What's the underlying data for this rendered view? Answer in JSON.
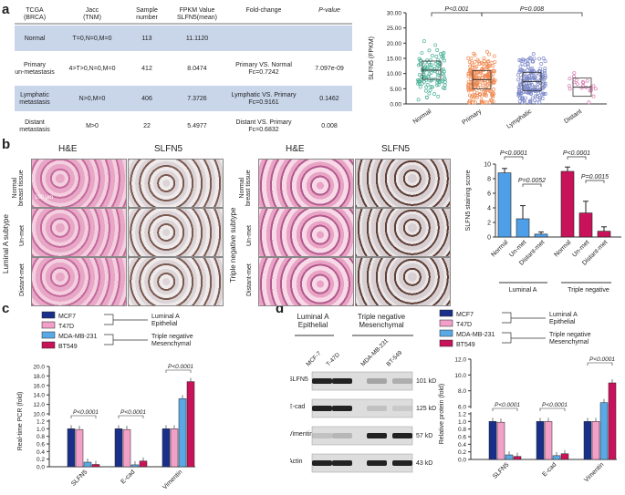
{
  "panels": {
    "a": "a",
    "b": "b",
    "c": "c",
    "d": "d"
  },
  "table_a": {
    "headers": [
      "TCGA\n(BRCA)",
      "Jacc\n(TNM)",
      "Sample\nnumber",
      "FPKM Value\nSLFN5(mean)",
      "Fold-change",
      "P-value"
    ],
    "rows": [
      {
        "group": "Normal",
        "tnm": "T=0,N=0,M=0",
        "n": "113",
        "fpkm": "11.1120",
        "fold": "",
        "p": ""
      },
      {
        "group": "Primary\nun-metastasis",
        "tnm": "4>T>0,N=0,M=0",
        "n": "412",
        "fpkm": "8.0474",
        "fold": "Primary VS. Normal\nFc=0.7242",
        "p": "7.097e-09"
      },
      {
        "group": "Lymphatic\nmetastasis",
        "tnm": "N>0,M=0",
        "n": "406",
        "fpkm": "7.3726",
        "fold": "Lymphatic VS. Primary\nFc=0.9161",
        "p": "0.1462"
      },
      {
        "group": "Distant\nmetastasis",
        "tnm": "M>0",
        "n": "22",
        "fpkm": "5.4977",
        "fold": "Distant VS. Primary\nFc=0.6832",
        "p": "0.008"
      }
    ]
  },
  "chart_data": [
    {
      "id": "a-dot",
      "type": "scatter",
      "ylabel": "SLFN5 (FPKM)",
      "ylim": [
        0,
        30
      ],
      "yticks": [
        "0.00",
        "5.00",
        "10.00",
        "15.00",
        "20.00",
        "25.00",
        "30.00"
      ],
      "categories": [
        "Normal",
        "Primary",
        "Lymphatic",
        "Distant"
      ],
      "medians": [
        11.1,
        8.0,
        7.4,
        5.5
      ],
      "colors": [
        "#4db39a",
        "#f08a52",
        "#7b87c8",
        "#d97bb0"
      ],
      "annotations": [
        "P<0.001",
        "P=0.008"
      ]
    },
    {
      "id": "b-bar",
      "type": "bar",
      "ylabel": "SLFN5 staining score",
      "ylim": [
        0,
        10
      ],
      "yticks": [
        "0",
        "2",
        "4",
        "6",
        "8",
        "10"
      ],
      "categories": [
        "Normal",
        "Un-met",
        "Distant-met",
        "Normal",
        "Un-met",
        "Distant-met"
      ],
      "values": [
        8.8,
        2.5,
        0.4,
        9.0,
        3.3,
        0.8
      ],
      "errors": [
        0.6,
        1.8,
        0.3,
        0.6,
        1.6,
        0.6
      ],
      "colors": [
        "#4f9fe8",
        "#4f9fe8",
        "#4f9fe8",
        "#c8125a",
        "#c8125a",
        "#c8125a"
      ],
      "groups": [
        "Luminal A",
        "Triple negative"
      ],
      "annotations": [
        "P<0.0001",
        "P=0.0052",
        "P<0.0001",
        "P=0.0015"
      ]
    },
    {
      "id": "c-bar",
      "type": "bar",
      "ylabel": "Real-time PCR (fold)",
      "ylim": [
        0,
        20
      ],
      "yticks": [
        "0.0",
        "0.2",
        "0.4",
        "0.6",
        "0.8",
        "1.0",
        "1.2",
        "10.0",
        "12.0",
        "14.0",
        "16.0",
        "18.0",
        "20.0"
      ],
      "categories": [
        "SLFN5",
        "E-cad",
        "Vimentin"
      ],
      "series": [
        {
          "name": "MCF7",
          "values": [
            1.0,
            1.0,
            1.0
          ]
        },
        {
          "name": "T47D",
          "values": [
            0.98,
            0.98,
            1.0
          ]
        },
        {
          "name": "MDA-MB-231",
          "values": [
            0.12,
            0.05,
            13.2
          ]
        },
        {
          "name": "BT549",
          "values": [
            0.06,
            0.15,
            16.8
          ]
        }
      ],
      "colors": [
        "#1a2f8a",
        "#f2a0c8",
        "#5aa9e6",
        "#c8125a"
      ],
      "annotations": [
        "P<0.0001",
        "P<0.0001",
        "P<0.0001"
      ]
    },
    {
      "id": "d-bar",
      "type": "bar",
      "ylabel": "Relative protein (fold)",
      "ylim": [
        0,
        12
      ],
      "yticks": [
        "0.0",
        "0.2",
        "0.4",
        "0.6",
        "0.8",
        "1.0",
        "1.2",
        "6.0",
        "8.0",
        "10.0",
        "12.0"
      ],
      "categories": [
        "SLFN5",
        "E-cad",
        "Vimentin"
      ],
      "series": [
        {
          "name": "MCF7",
          "values": [
            1.0,
            1.0,
            1.0
          ]
        },
        {
          "name": "T47D",
          "values": [
            0.98,
            1.0,
            1.0
          ]
        },
        {
          "name": "MDA-MB-231",
          "values": [
            0.12,
            0.1,
            6.5
          ]
        },
        {
          "name": "BT549",
          "values": [
            0.08,
            0.15,
            9.0
          ]
        }
      ],
      "colors": [
        "#1a2f8a",
        "#f2a0c8",
        "#5aa9e6",
        "#c8125a"
      ],
      "annotations": [
        "P<0.0001",
        "P<0.0001",
        "P<0.0001"
      ]
    }
  ],
  "legend": {
    "items": [
      "MCF7",
      "T47D",
      "MDA-MB-231",
      "BT549"
    ],
    "group1": "Luminal A\nEpithelial",
    "group2": "Triple negative\nMesenchymal"
  },
  "histology": {
    "he": "H&E",
    "slfn5": "SLFN5",
    "rows": [
      "Normal\nbreast tissue",
      "Un-met",
      "Distant-met"
    ],
    "subtype_left": "Luminal A subtype",
    "subtype_right": "Triple negative subtype",
    "scale": "100 μm"
  },
  "blot": {
    "group1": "Luminal A\nEpithelial",
    "group2": "Triple negative\nMesenchymal",
    "lanes": [
      "MCF-7",
      "T-47D",
      "MDA-MB-231",
      "BT-549"
    ],
    "proteins": [
      "SLFN5",
      "E-cad",
      "Vimentin",
      "Actin"
    ],
    "sizes": [
      "101 kD",
      "125 kD",
      "57 kD",
      "43 kD"
    ]
  }
}
